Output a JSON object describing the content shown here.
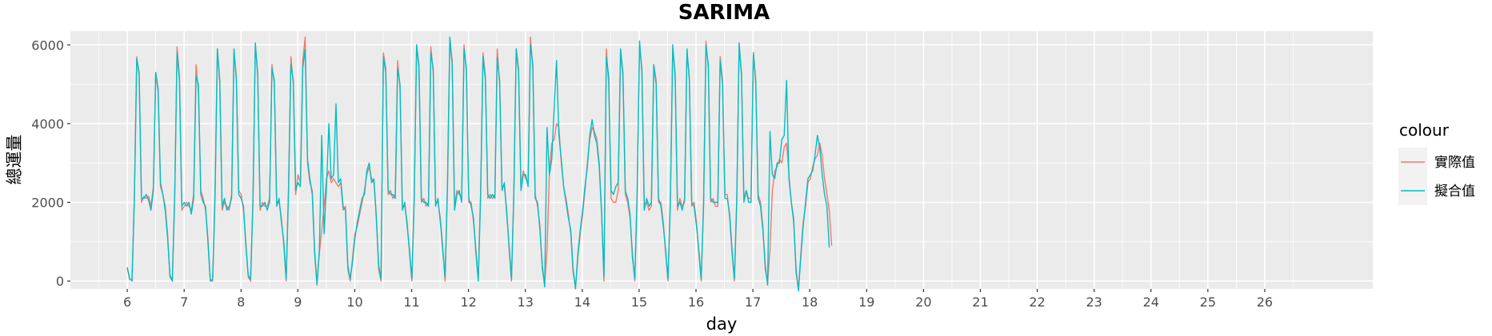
{
  "chart_data": {
    "type": "line",
    "title": "SARIMA",
    "xlabel": "day",
    "ylabel": "總運量",
    "x_ticks": [
      "6",
      "7",
      "8",
      "9",
      "10",
      "11",
      "12",
      "13",
      "14",
      "15",
      "16",
      "17",
      "18",
      "19",
      "20",
      "21",
      "22",
      "23",
      "24",
      "25",
      "26"
    ],
    "y_ticks": [
      "0",
      "2000",
      "4000",
      "6000"
    ],
    "xlim": [
      5.0,
      27.9
    ],
    "ylim": [
      -200,
      6350
    ],
    "grid": true,
    "legend": {
      "title": "colour",
      "position": "right"
    },
    "series": [
      {
        "name": "實際值",
        "color": "#F8766D",
        "x_start": 6.0,
        "x_step": 0.0417,
        "values": [
          320,
          50,
          10,
          2200,
          5700,
          5200,
          2000,
          2150,
          2100,
          2150,
          1900,
          2400,
          5300,
          4800,
          2400,
          2200,
          1900,
          1200,
          100,
          5,
          2100,
          5950,
          5200,
          1800,
          1900,
          2000,
          1900,
          1800,
          2200,
          5500,
          4800,
          2300,
          2100,
          1800,
          1100,
          10,
          0,
          2100,
          5900,
          5000,
          1800,
          2000,
          1900,
          1800,
          2200,
          5800,
          5200,
          2300,
          2200,
          1800,
          1000,
          100,
          0,
          2100,
          6000,
          5300,
          1800,
          2000,
          1900,
          1900,
          2100,
          5500,
          5000,
          2000,
          2000,
          1600,
          900,
          0,
          2400,
          5700,
          5000,
          2200,
          2700,
          2500,
          5600,
          6200,
          3000,
          2500,
          2300,
          800,
          -50,
          700,
          1300,
          1900,
          2600,
          2800,
          2500,
          2600,
          2500,
          2400,
          2500,
          1800,
          1900,
          300,
          0,
          600,
          1200,
          1400,
          1700,
          2000,
          2300,
          2700,
          2900,
          2600,
          2500,
          1700,
          300,
          0,
          5800,
          5400,
          2200,
          2300,
          2100,
          2200,
          5600,
          4900,
          1900,
          1900,
          1500,
          700,
          0,
          2200,
          6000,
          5500,
          2000,
          2100,
          1900,
          2000,
          5950,
          5300,
          2000,
          2000,
          1600,
          900,
          0,
          2300,
          6150,
          5600,
          1900,
          2300,
          2200,
          2100,
          6000,
          5300,
          2000,
          2000,
          1500,
          800,
          50,
          2300,
          5800,
          5200,
          2100,
          2200,
          2100,
          2200,
          5900,
          5000,
          2400,
          2400,
          1800,
          800,
          0,
          2300,
          5900,
          5400,
          2400,
          2800,
          2600,
          2500,
          6200,
          5400,
          2200,
          1900,
          1400,
          300,
          -100,
          800,
          2800,
          3500,
          3600,
          4000,
          3900,
          3000,
          2400,
          2100,
          1700,
          1200,
          200,
          -150,
          600,
          1200,
          1700,
          2300,
          3000,
          3600,
          3900,
          3800,
          3600,
          3000,
          1800,
          0,
          5900,
          5000,
          2100,
          2000,
          2000,
          2300,
          5800,
          5200,
          2200,
          2000,
          1600,
          700,
          0,
          2300,
          6000,
          5400,
          1900,
          2000,
          1800,
          1900,
          5500,
          5100,
          2000,
          2000,
          1500,
          700,
          0,
          2100,
          5900,
          5300,
          1800,
          2100,
          1900,
          2000,
          5800,
          5200,
          1900,
          2000,
          1500,
          700,
          0,
          2000,
          6100,
          5400,
          2000,
          2100,
          1900,
          1900,
          5700,
          5100,
          2200,
          2200,
          1600,
          700,
          0,
          2000,
          6000,
          5300,
          2100,
          2300,
          2100,
          2100,
          5800,
          5000,
          2200,
          2000,
          1400,
          300,
          -50,
          800,
          2300,
          2800,
          2900,
          3100,
          3000,
          3400,
          3500,
          2700,
          2000,
          1600,
          200,
          -200,
          700,
          1500,
          1900,
          2500,
          2600,
          2900,
          3100,
          3200,
          3500,
          3200,
          2600,
          2200,
          1800,
          900
        ]
      },
      {
        "name": "擬合值",
        "color": "#00BFC4",
        "x_start": 6.0,
        "x_step": 0.0417,
        "values": [
          350,
          60,
          0,
          2100,
          5650,
          5300,
          2100,
          2100,
          2200,
          2050,
          1800,
          2300,
          5300,
          4900,
          2500,
          2200,
          1800,
          1100,
          150,
          0,
          2200,
          5800,
          5100,
          1900,
          2000,
          1900,
          2000,
          1700,
          2100,
          5200,
          5000,
          2200,
          2000,
          1900,
          1000,
          0,
          50,
          2200,
          5900,
          5100,
          1900,
          2100,
          1800,
          1900,
          2100,
          5900,
          5100,
          2200,
          2100,
          1900,
          900,
          150,
          50,
          2000,
          6050,
          5200,
          1900,
          1900,
          2000,
          1800,
          2000,
          5400,
          5100,
          1900,
          2100,
          1500,
          1000,
          50,
          2300,
          5500,
          5100,
          2300,
          2500,
          2400,
          5400,
          5900,
          3100,
          2600,
          2200,
          700,
          -100,
          800,
          3700,
          1200,
          2400,
          4000,
          2600,
          2700,
          4500,
          2500,
          2600,
          1900,
          1800,
          400,
          50,
          500,
          1100,
          1500,
          1800,
          2100,
          2200,
          2800,
          3000,
          2500,
          2600,
          1600,
          400,
          50,
          5700,
          5300,
          2300,
          2200,
          2200,
          2100,
          5400,
          5000,
          1800,
          2000,
          1400,
          800,
          50,
          2100,
          6000,
          5400,
          2100,
          2000,
          2000,
          1900,
          5800,
          5400,
          1900,
          2100,
          1500,
          800,
          100,
          2400,
          6200,
          5500,
          1800,
          2200,
          2300,
          2000,
          5900,
          5400,
          2100,
          1900,
          1600,
          700,
          0,
          2200,
          5700,
          5100,
          2200,
          2100,
          2200,
          2100,
          5700,
          5100,
          2300,
          2500,
          1700,
          900,
          50,
          2200,
          5900,
          5300,
          2300,
          2700,
          2700,
          2400,
          6000,
          5500,
          2100,
          2000,
          1300,
          400,
          -150,
          3900,
          2700,
          3100,
          4400,
          5600,
          3700,
          3100,
          2400,
          2000,
          1600,
          1300,
          300,
          -200,
          700,
          1300,
          1800,
          2400,
          2900,
          3700,
          4100,
          3700,
          3500,
          2900,
          1700,
          100,
          5700,
          5200,
          2300,
          2200,
          2400,
          2500,
          5900,
          5300,
          2300,
          2100,
          1700,
          600,
          50,
          2200,
          6100,
          5300,
          1800,
          2100,
          1900,
          2000,
          5500,
          5000,
          2100,
          1900,
          1400,
          800,
          50,
          2000,
          6000,
          5200,
          1900,
          2000,
          1800,
          2100,
          5900,
          5100,
          2000,
          1900,
          1400,
          800,
          50,
          1900,
          6000,
          5500,
          2100,
          2000,
          2000,
          2000,
          5600,
          5000,
          2100,
          2100,
          1700,
          800,
          50,
          2100,
          6050,
          5200,
          2000,
          2300,
          2000,
          2000,
          5800,
          5100,
          2100,
          1900,
          1300,
          400,
          -100,
          3800,
          2700,
          2600,
          3000,
          3000,
          3600,
          3700,
          5100,
          2600,
          2000,
          1500,
          300,
          -250,
          600,
          1400,
          2000,
          2600,
          2700,
          2800,
          3200,
          3700,
          3400,
          2700,
          2200,
          1900,
          850
        ]
      }
    ]
  }
}
